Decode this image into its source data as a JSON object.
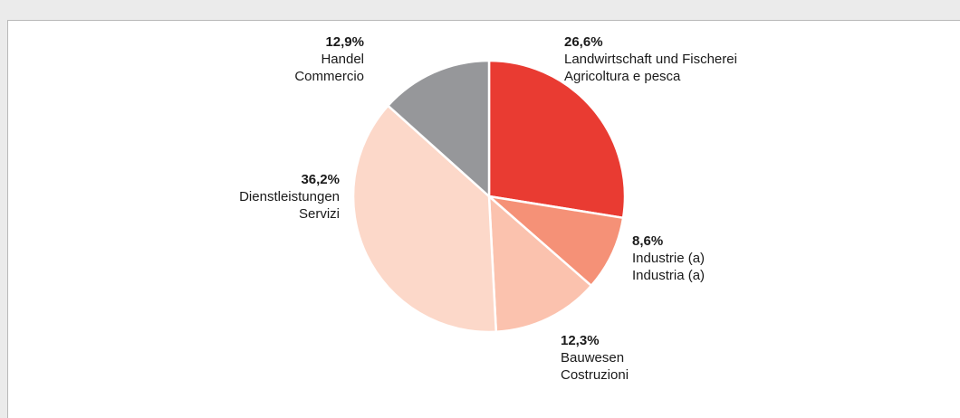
{
  "chart_data": {
    "type": "pie",
    "title": "",
    "colors": {
      "background": "#ebebeb",
      "panel": "#ffffff",
      "panel_border": "#b9b9b9"
    },
    "slices": [
      {
        "value": 26.6,
        "value_label": "26,6%",
        "label_de": "Landwirtschaft und Fischerei",
        "label_it": "Agricoltura e pesca",
        "color": "#e93b32"
      },
      {
        "value": 8.6,
        "value_label": "8,6%",
        "label_de": "Industrie (a)",
        "label_it": "Industria (a)",
        "color": "#f59177"
      },
      {
        "value": 12.3,
        "value_label": "12,3%",
        "label_de": "Bauwesen",
        "label_it": "Costruzioni",
        "color": "#fbc2ae"
      },
      {
        "value": 36.2,
        "value_label": "36,2%",
        "label_de": "Dienstleistungen",
        "label_it": "Servizi",
        "color": "#fcd8c9"
      },
      {
        "value": 12.9,
        "value_label": "12,9%",
        "label_de": "Handel",
        "label_it": "Commercio",
        "color": "#96979a"
      }
    ]
  }
}
